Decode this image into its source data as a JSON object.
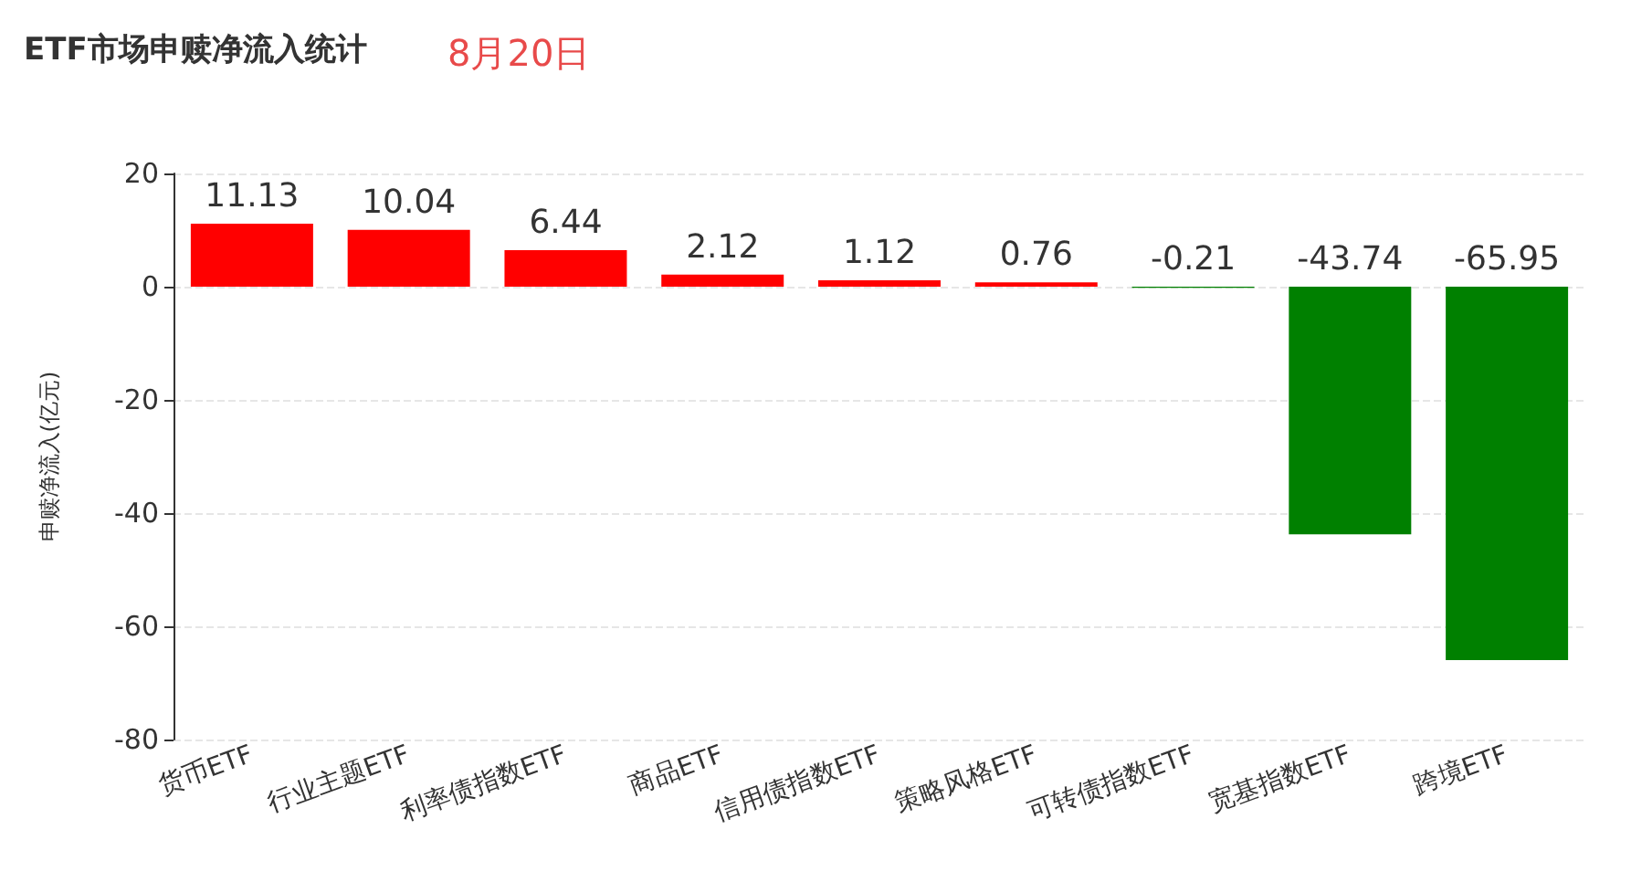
{
  "chart_data": {
    "type": "bar",
    "title": "ETF市场申赎净流入统计",
    "subtitle": "8月20日",
    "ylabel": "申赎净流入(亿元)",
    "categories": [
      "货币ETF",
      "行业主题ETF",
      "利率债指数ETF",
      "商品ETF",
      "信用债指数ETF",
      "策略风格ETF",
      "可转债指数ETF",
      "宽基指数ETF",
      "跨境ETF"
    ],
    "values": [
      11.13,
      10.04,
      6.44,
      2.12,
      1.12,
      0.76,
      -0.21,
      -43.74,
      -65.95
    ],
    "colors": [
      "#ff0000",
      "#ff0000",
      "#ff0000",
      "#ff0000",
      "#ff0000",
      "#ff0000",
      "#008000",
      "#008000",
      "#008000"
    ],
    "ylim": [
      -80,
      20
    ],
    "yticks": [
      -80,
      -60,
      -40,
      -20,
      0,
      20
    ],
    "grid": "y",
    "data_labels": true
  }
}
